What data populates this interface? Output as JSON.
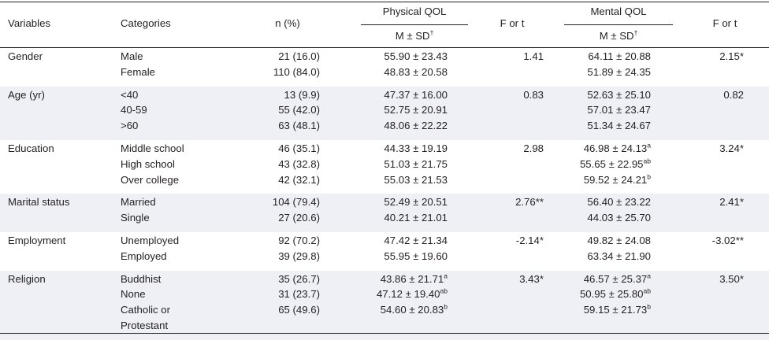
{
  "header": {
    "variables": "Variables",
    "categories": "Categories",
    "n_pct": "n (%)",
    "physical_qol": "Physical QOL",
    "mental_qol": "Mental QOL",
    "m_sd": "M ± SD",
    "m_sd_mark": "†",
    "f_or_t": "F or t"
  },
  "rows": [
    {
      "variable": "Gender",
      "shaded": false,
      "categories": [
        "Male",
        "Female"
      ],
      "n": [
        "21 (16.0)",
        "110 (84.0)"
      ],
      "physical": [
        [
          "55.90 ± 23.43",
          ""
        ],
        [
          "48.83 ± 20.58",
          ""
        ]
      ],
      "physical_f": "1.41",
      "mental": [
        [
          "64.11 ± 20.88",
          ""
        ],
        [
          "51.89 ± 24.35",
          ""
        ]
      ],
      "mental_f": "2.15*"
    },
    {
      "variable": "Age (yr)",
      "shaded": true,
      "categories": [
        "<40",
        "40-59",
        ">60"
      ],
      "n": [
        "13 (9.9)",
        "55 (42.0)",
        "63 (48.1)"
      ],
      "physical": [
        [
          "47.37 ± 16.00",
          ""
        ],
        [
          "52.75 ± 20.91",
          ""
        ],
        [
          "48.06 ± 22.22",
          ""
        ]
      ],
      "physical_f": "0.83",
      "mental": [
        [
          "52.63 ± 25.10",
          ""
        ],
        [
          "57.01 ± 23.47",
          ""
        ],
        [
          "51.34 ± 24.67",
          ""
        ]
      ],
      "mental_f": "0.82"
    },
    {
      "variable": "Education",
      "shaded": false,
      "categories": [
        "Middle school",
        "High school",
        "Over college"
      ],
      "n": [
        "46 (35.1)",
        "43 (32.8)",
        "42 (32.1)"
      ],
      "physical": [
        [
          "44.33 ± 19.19",
          ""
        ],
        [
          "51.03 ± 21.75",
          ""
        ],
        [
          "55.03 ± 21.53",
          ""
        ]
      ],
      "physical_f": "2.98",
      "mental": [
        [
          "46.98 ± 24.13",
          "a"
        ],
        [
          "55.65 ± 22.95",
          "ab"
        ],
        [
          "59.52 ± 24.21",
          "b"
        ]
      ],
      "mental_f": "3.24*"
    },
    {
      "variable": "Marital status",
      "shaded": true,
      "categories": [
        "Married",
        "Single"
      ],
      "n": [
        "104 (79.4)",
        "27 (20.6)"
      ],
      "physical": [
        [
          "52.49 ± 20.51",
          ""
        ],
        [
          "40.21 ± 21.01",
          ""
        ]
      ],
      "physical_f": "2.76**",
      "mental": [
        [
          "56.40 ± 23.22",
          ""
        ],
        [
          "44.03 ± 25.70",
          ""
        ]
      ],
      "mental_f": "2.41*"
    },
    {
      "variable": "Employment",
      "shaded": false,
      "categories": [
        "Unemployed",
        "Employed"
      ],
      "n": [
        "92 (70.2)",
        "39 (29.8)"
      ],
      "physical": [
        [
          "47.42 ± 21.34",
          ""
        ],
        [
          "55.95 ± 19.60",
          ""
        ]
      ],
      "physical_f": "-2.14*",
      "mental": [
        [
          "49.82 ± 24.08",
          ""
        ],
        [
          "63.34 ± 21.90",
          ""
        ]
      ],
      "mental_f": "-3.02**"
    },
    {
      "variable": "Religion",
      "shaded": true,
      "categories": [
        "Buddhist",
        "None",
        "Catholic or",
        "Protestant"
      ],
      "n": [
        "35 (26.7)",
        "31 (23.7)",
        "65 (49.6)",
        ""
      ],
      "physical": [
        [
          "43.86 ± 21.71",
          "a"
        ],
        [
          "47.12 ± 19.40",
          "ab"
        ],
        [
          "54.60 ± 20.83",
          "b"
        ]
      ],
      "physical_f": "3.43*",
      "mental": [
        [
          "46.57 ± 25.37",
          "a"
        ],
        [
          "50.95 ± 25.80",
          "ab"
        ],
        [
          "59.15 ± 21.73",
          "b"
        ]
      ],
      "mental_f": "3.50*"
    }
  ]
}
